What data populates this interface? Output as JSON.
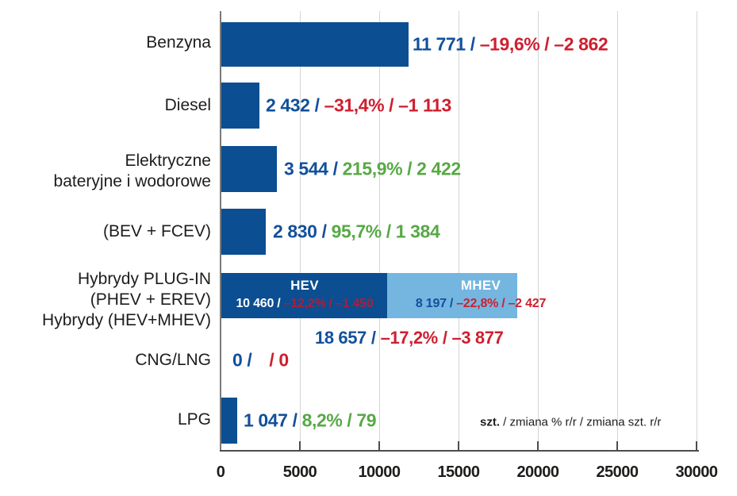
{
  "colors": {
    "bar_blue": "#0b4e92",
    "bar_light_blue": "#74b6e0",
    "value_blue": "#11509b",
    "negative_red": "#ce1f2f",
    "muted_red_on_blue": "#a8203c",
    "positive_green": "#57a946",
    "label_black": "#1d1d1b",
    "grid_gray": "#d5d5d5",
    "axis_dark": "#4d4d4d",
    "axis_gray": "#7a7a7a"
  },
  "sep": "/",
  "legend": {
    "unit": "szt.",
    "rest": " / zmiana % r/r / zmiana szt. r/r"
  },
  "x_axis": {
    "tick_labels": [
      "0",
      "5000",
      "10000",
      "15000",
      "20000",
      "25000",
      "30000"
    ]
  },
  "chart_data": {
    "type": "bar",
    "orientation": "horizontal",
    "unit": "szt.",
    "xlim": [
      0,
      30000
    ],
    "x_ticks": [
      0,
      5000,
      10000,
      15000,
      20000,
      25000,
      30000
    ],
    "grid": true,
    "value_format": "szt. / zmiana % r/r / zmiana szt. r/r",
    "rows": [
      {
        "label": "Benzyna",
        "value": 11771,
        "value_text": "11 771",
        "pct": "–19,6%",
        "abs": "–2 862",
        "trend": "negative"
      },
      {
        "label": "Diesel",
        "value": 2432,
        "value_text": "2 432",
        "pct": "–31,4%",
        "abs": "–1 113",
        "trend": "negative"
      },
      {
        "label": "Elektryczne bateryjne i wodorowe",
        "label_lines": [
          "Elektryczne",
          "bateryjne i wodorowe"
        ],
        "value": 3544,
        "value_text": "3 544",
        "pct": "215,9%",
        "abs": "2 422",
        "trend": "positive"
      },
      {
        "label": "(BEV + FCEV)",
        "value": 2830,
        "value_text": "2 830",
        "pct": "95,7%",
        "abs": "1 384",
        "trend": "positive"
      },
      {
        "label": "Hybrydy PLUG-IN (PHEV + EREV) Hybrydy (HEV+MHEV)",
        "label_lines": [
          "Hybrydy PLUG-IN",
          "(PHEV + EREV)",
          "Hybrydy (HEV+MHEV)"
        ],
        "stacked": true,
        "segments": [
          {
            "name": "HEV",
            "value": 10460,
            "value_text": "10 460",
            "pct": "–12,2%",
            "abs": "–1 450",
            "trend": "negative"
          },
          {
            "name": "MHEV",
            "value": 8197,
            "value_text": "8 197",
            "pct": "–22,8%",
            "abs": "–2 427",
            "trend": "negative"
          }
        ],
        "total": {
          "value": 18657,
          "value_text": "18 657",
          "pct": "–17,2%",
          "abs": "–3 877",
          "trend": "negative"
        }
      },
      {
        "label": "CNG/LNG",
        "value": 0,
        "value_text": "0",
        "pct": "",
        "abs": "0",
        "trend": "negative"
      },
      {
        "label": "LPG",
        "value": 1047,
        "value_text": "1 047",
        "pct": "8,2%",
        "abs": "79",
        "trend": "positive"
      }
    ]
  }
}
